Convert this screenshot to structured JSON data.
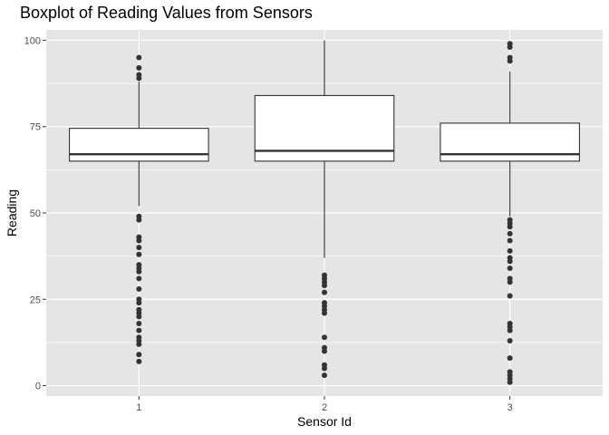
{
  "chart_data": {
    "type": "boxplot",
    "title": "Boxplot of Reading Values from Sensors",
    "xlabel": "Sensor Id",
    "ylabel": "Reading",
    "ylim": [
      -3,
      103
    ],
    "yticks": [
      0,
      25,
      50,
      75,
      100
    ],
    "grid": true,
    "legend": "none",
    "colors": {
      "panel": "#e5e5e5",
      "grid": "#ffffff",
      "box_fill": "#ffffff",
      "line": "#333333",
      "outlier": "#333333",
      "tick_text": "#4d4d4d"
    },
    "series": [
      {
        "category": "1",
        "whisker_low": 52,
        "q1": 65,
        "median": 67,
        "q3": 74.5,
        "whisker_high": 88,
        "outliers": [
          7,
          9,
          12,
          13,
          14,
          16,
          18,
          20,
          21,
          22,
          24,
          25,
          28,
          31,
          33,
          34,
          35,
          38,
          40,
          42,
          43,
          48,
          49,
          89,
          90,
          92,
          95
        ]
      },
      {
        "category": "2",
        "whisker_low": 37,
        "q1": 65,
        "median": 68,
        "q3": 84,
        "whisker_high": 100,
        "outliers": [
          3,
          5,
          6,
          10,
          11,
          14,
          21,
          22,
          23,
          24,
          27,
          29,
          30,
          31,
          32
        ]
      },
      {
        "category": "3",
        "whisker_low": 49,
        "q1": 65,
        "median": 67,
        "q3": 76,
        "whisker_high": 91,
        "outliers": [
          1,
          2,
          3,
          4,
          8,
          13,
          16,
          17,
          18,
          26,
          30,
          31,
          34,
          36,
          37,
          39,
          42,
          44,
          46,
          47,
          48,
          94,
          95,
          98,
          99
        ]
      }
    ]
  }
}
